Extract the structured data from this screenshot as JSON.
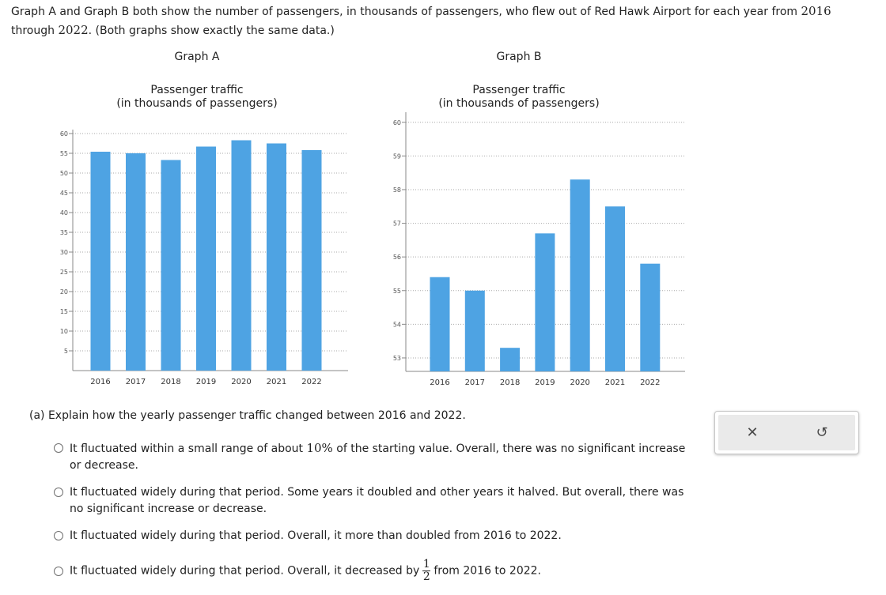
{
  "intro": {
    "part1": "Graph A and Graph B both show the number of passengers, in thousands of passengers, who flew out of Red Hawk Airport for each year from ",
    "year_start": "2016",
    "part2": "through ",
    "year_end": "2022",
    "part3": ". (Both graphs show exactly the same data.)"
  },
  "colors": {
    "bar": "#4ea3e3",
    "grid": "#a9a9a9",
    "axis": "#888888",
    "tick_label": "#555555"
  },
  "chart_data": [
    {
      "type": "bar",
      "graph_label": "Graph A",
      "title_line1": "Passenger traffic",
      "title_line2": "(in thousands of passengers)",
      "categories": [
        "2016",
        "2017",
        "2018",
        "2019",
        "2020",
        "2021",
        "2022"
      ],
      "values": [
        55.4,
        55.0,
        53.3,
        56.7,
        58.3,
        57.5,
        55.8
      ],
      "ylim": [
        0,
        61
      ],
      "yticks": [
        5,
        10,
        15,
        20,
        25,
        30,
        35,
        40,
        45,
        50,
        55,
        60
      ],
      "grid": true
    },
    {
      "type": "bar",
      "graph_label": "Graph B",
      "title_line1": "Passenger traffic",
      "title_line2": "(in thousands of passengers)",
      "categories": [
        "2016",
        "2017",
        "2018",
        "2019",
        "2020",
        "2021",
        "2022"
      ],
      "values": [
        55.4,
        55.0,
        53.3,
        56.7,
        58.3,
        57.5,
        55.8
      ],
      "ylim": [
        52.6,
        60.3
      ],
      "yticks": [
        53,
        54,
        55,
        56,
        57,
        58,
        59,
        60
      ],
      "grid": true
    }
  ],
  "question": {
    "prompt": "(a) Explain how the yearly passenger traffic changed between 2016 and 2022.",
    "choice1_a": "It fluctuated within a small range of about ",
    "choice1_pct": "10%",
    "choice1_b": " of the starting value. Overall, there was no significant increase or decrease.",
    "choice2": "It fluctuated widely during that period. Some years it doubled and other years it halved. But overall, there was no significant increase or decrease.",
    "choice3": "It fluctuated widely during that period. Overall, it more than doubled from 2016 to 2022.",
    "choice4_a": "It fluctuated widely during that period. Overall, it decreased by",
    "choice4_num": "1",
    "choice4_den": "2",
    "choice4_b": "from 2016 to 2022."
  },
  "panel": {
    "close_symbol": "✕",
    "reset_symbol": "↺"
  }
}
